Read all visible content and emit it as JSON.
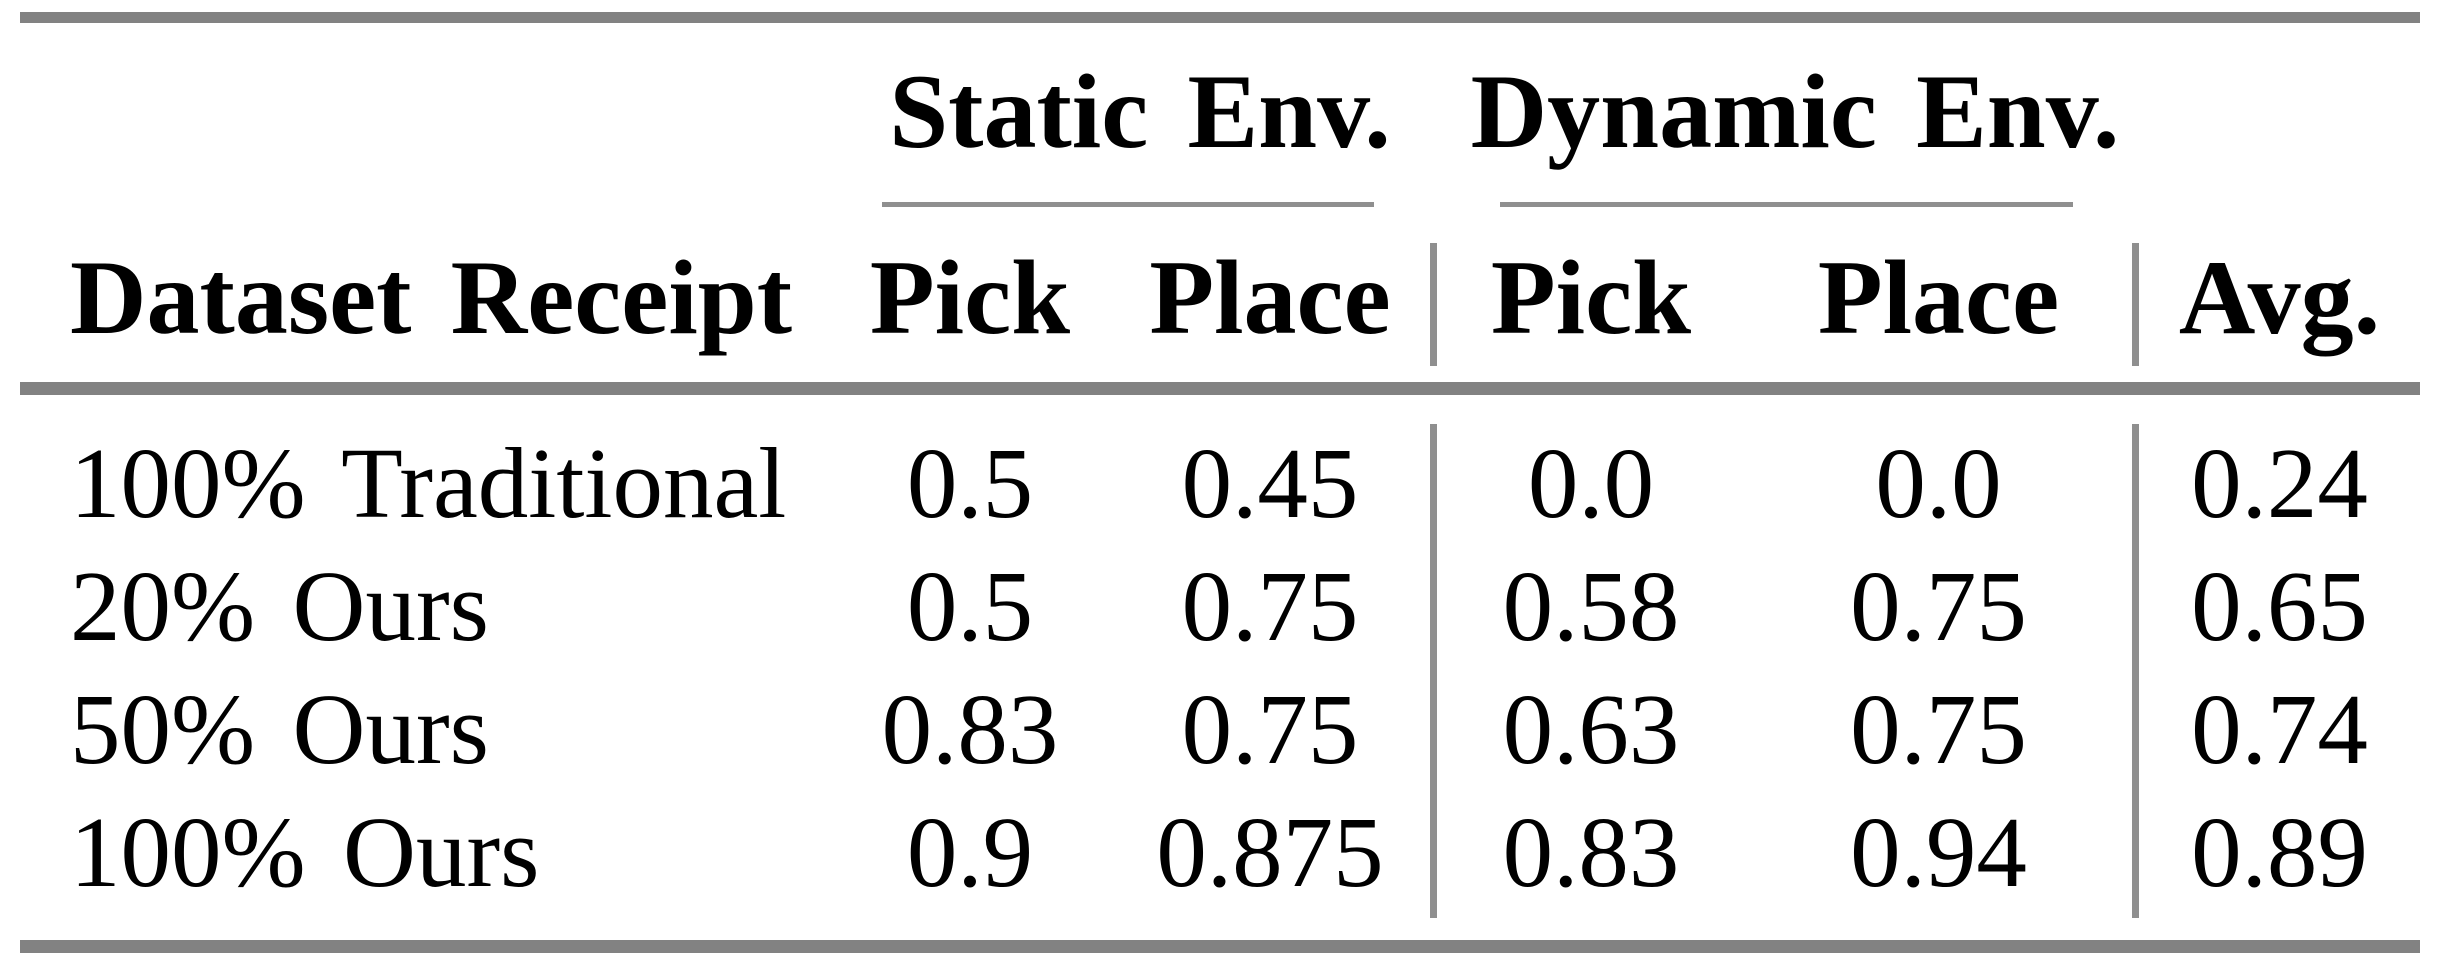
{
  "table": {
    "groups": [
      {
        "label": "Static Env."
      },
      {
        "label": "Dynamic Env."
      }
    ],
    "headers": {
      "dataset": "Dataset Receipt",
      "static_pick": "Pick",
      "static_place": "Place",
      "dynamic_pick": "Pick",
      "dynamic_place": "Place",
      "avg": "Avg."
    },
    "rows": [
      {
        "dataset": "100% Traditional",
        "static_pick": "0.5",
        "static_place": "0.45",
        "dynamic_pick": "0.0",
        "dynamic_place": "0.0",
        "avg": "0.24"
      },
      {
        "dataset": "20% Ours",
        "static_pick": "0.5",
        "static_place": "0.75",
        "dynamic_pick": "0.58",
        "dynamic_place": "0.75",
        "avg": "0.65"
      },
      {
        "dataset": "50% Ours",
        "static_pick": "0.83",
        "static_place": "0.75",
        "dynamic_pick": "0.63",
        "dynamic_place": "0.75",
        "avg": "0.74"
      },
      {
        "dataset": "100% Ours",
        "static_pick": "0.9",
        "static_place": "0.875",
        "dynamic_pick": "0.83",
        "dynamic_place": "0.94",
        "avg": "0.89"
      }
    ],
    "colors": {
      "thick_rule": "#828282",
      "thin_rule": "#8f8f8f",
      "text": "#000000",
      "background": "#ffffff"
    }
  }
}
